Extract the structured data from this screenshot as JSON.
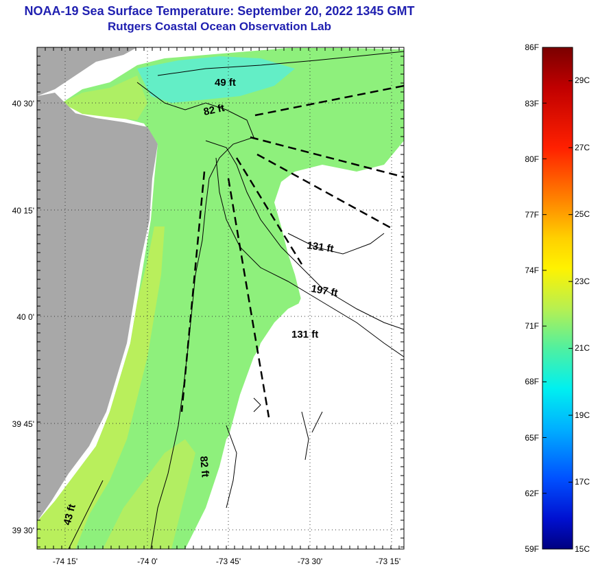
{
  "title": "NOAA-19 Sea Surface Temperature:  September 20, 2022 1345 GMT",
  "subtitle": "Rutgers Coastal Ocean Observation Lab",
  "map": {
    "lat_ticks": [
      "40 30'",
      "40 15'",
      "40 0'",
      "39 45'",
      "39 30'"
    ],
    "lon_ticks": [
      "-74 15'",
      "-74 0'",
      "-73 45'",
      "-73 30'",
      "-73 15'"
    ],
    "depth_labels": [
      "49 ft",
      "82 ft",
      "131 ft",
      "197 ft",
      "131 ft",
      "82 ft",
      "43 ft"
    ],
    "colors": {
      "land": "#a8a8a8",
      "water_no_data": "#ffffff",
      "sst_green": "#7df07a",
      "sst_yellow_green": "#b8ef5a",
      "sst_cyan": "#5fefc0"
    }
  },
  "colorbar": {
    "fahrenheit_labels": [
      "86F",
      "83F",
      "80F",
      "77F",
      "74F",
      "71F",
      "68F",
      "65F",
      "62F",
      "59F"
    ],
    "celsius_labels": [
      "29C",
      "27C",
      "25C",
      "23C",
      "21C",
      "19C",
      "17C",
      "15C"
    ],
    "range_f": [
      59,
      86
    ],
    "range_c": [
      15,
      30
    ]
  }
}
